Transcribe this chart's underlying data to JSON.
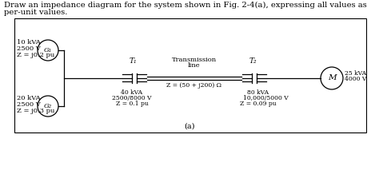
{
  "title_line1": "Draw an impedance diagram for the system shown in Fig. 2-4(a), expressing all values as",
  "title_line2": "per-unit values.",
  "caption": "(a)",
  "g1_label": "G₁",
  "g1_specs": [
    "10 kVA",
    "2500 V",
    "Z = j0.2 pu"
  ],
  "g2_label": "G₂",
  "g2_specs": [
    "20 kVA",
    "2500 V",
    "Z = j0.3 pu"
  ],
  "m_label": "M",
  "m_specs": [
    "25 kVA",
    "4000 V"
  ],
  "t1_label": "T₁",
  "t1_specs": [
    "40 kVA",
    "2500/8000 V",
    "Z = 0.1 pu"
  ],
  "t2_label": "T₂",
  "t2_specs": [
    "80 kVA",
    "10,000/5000 V",
    "Z = 0.09 pu"
  ],
  "line_label_1": "Transmission",
  "line_label_2": "line",
  "line_z": "Z = (50 + j200) Ω",
  "bg_color": "#ffffff",
  "box_color": "#ffffff",
  "box_edge": "#000000",
  "line_color": "#000000",
  "text_color": "#000000",
  "font_size": 6.0,
  "title_font_size": 7.2
}
